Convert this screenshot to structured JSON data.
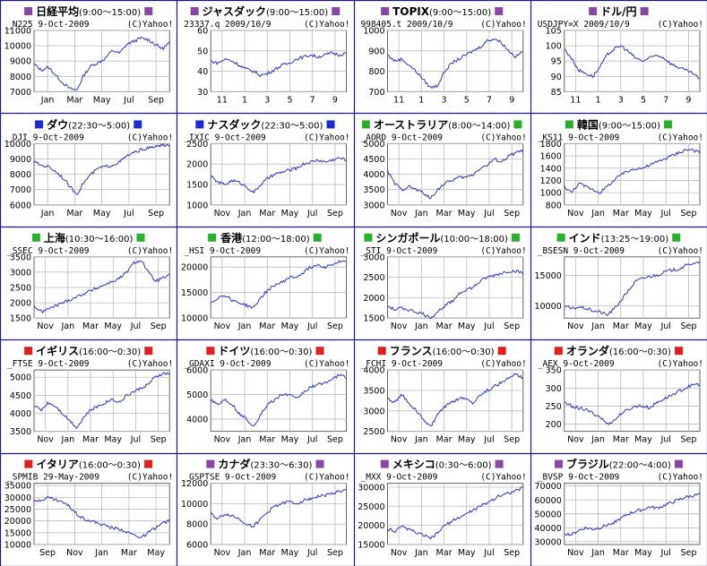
{
  "colors": {
    "border": "#1a1a8c",
    "line": "#2a36c8",
    "purple": "#8c44a8",
    "blue": "#1a2ad6",
    "green": "#28b028",
    "red": "#e02020"
  },
  "chart_data": [
    {
      "type": "line",
      "title": "日経平均",
      "hours": "(9:00〜15:00)",
      "square": "purple",
      "code": "_N225",
      "date": "9-Oct-2009",
      "credit": "(C)Yahoo!",
      "yticks": [
        "11000",
        "10000",
        "9000",
        "8000",
        "7000"
      ],
      "ylim": [
        7000,
        11000
      ],
      "xticks": [
        "Jan",
        "Mar",
        "May",
        "Jul",
        "Sep"
      ],
      "values": [
        8800,
        8400,
        8600,
        8100,
        7600,
        7200,
        7100,
        8100,
        8700,
        8900,
        9200,
        9700,
        9500,
        10100,
        10300,
        10500,
        10400,
        10100,
        9800,
        10200
      ]
    },
    {
      "type": "line",
      "title": "ジャスダック",
      "hours": "(9:00〜15:00)",
      "square": "purple",
      "code": "23337.q",
      "date": "2009/10/9",
      "credit": "(C)Yahoo!",
      "yticks": [
        "60",
        "50",
        "40",
        "30"
      ],
      "ylim": [
        30,
        60
      ],
      "xticks": [
        "11",
        "1",
        "3",
        "5",
        "7",
        "9"
      ],
      "values": [
        45,
        44,
        46,
        45,
        43,
        41,
        40,
        38,
        39,
        41,
        43,
        44,
        46,
        47,
        48,
        47,
        48,
        49,
        48,
        49
      ]
    },
    {
      "type": "line",
      "title": "TOPIX",
      "hours": "(9:00〜15:00)",
      "square": "purple",
      "code": "998405.t",
      "date": "2009/10/9",
      "credit": "(C)Yahoo!",
      "yticks": [
        "1000",
        "900",
        "800",
        "700"
      ],
      "ylim": [
        700,
        1000
      ],
      "xticks": [
        "11",
        "1",
        "3",
        "5",
        "7",
        "9"
      ],
      "values": [
        880,
        850,
        860,
        830,
        800,
        760,
        720,
        730,
        800,
        840,
        860,
        880,
        900,
        920,
        950,
        960,
        940,
        900,
        870,
        900
      ]
    },
    {
      "type": "line",
      "title": "ドル/円",
      "hours": "",
      "square": "purple",
      "code": "USDJPY=X",
      "date": "2009/10/9",
      "credit": "(C)Yahoo!",
      "yticks": [
        "105",
        "100",
        "95",
        "90",
        "85"
      ],
      "ylim": [
        85,
        105
      ],
      "xticks": [
        "11",
        "1",
        "3",
        "5",
        "7",
        "9"
      ],
      "values": [
        99,
        96,
        92,
        91,
        90,
        93,
        97,
        99,
        100,
        98,
        96,
        95,
        96,
        97,
        96,
        94,
        93,
        92,
        91,
        89
      ]
    },
    {
      "type": "line",
      "title": "ダウ",
      "hours": "(22:30〜5:00)",
      "square": "blue",
      "code": "_DJI",
      "date": "9-Oct-2009",
      "credit": "(C)Yahoo!",
      "yticks": [
        "10000",
        "9000",
        "8000",
        "7000",
        "6000"
      ],
      "ylim": [
        6000,
        10000
      ],
      "xticks": [
        "Jan",
        "Mar",
        "May",
        "Jul",
        "Sep"
      ],
      "values": [
        8800,
        8600,
        8500,
        8200,
        7800,
        7200,
        6700,
        7500,
        8000,
        8400,
        8500,
        8600,
        8800,
        9200,
        9400,
        9600,
        9700,
        9800,
        9900,
        9900
      ]
    },
    {
      "type": "line",
      "title": "ナスダック",
      "hours": "(22:30〜5:00)",
      "square": "blue",
      "code": "_IXIC",
      "date": "9-Oct-2009",
      "credit": "(C)Yahoo!",
      "yticks": [
        "2500",
        "2000",
        "1500",
        "1000"
      ],
      "ylim": [
        1000,
        2500
      ],
      "xticks": [
        "Nov",
        "Jan",
        "Mar",
        "May",
        "Jul",
        "Sep"
      ],
      "values": [
        1700,
        1550,
        1500,
        1600,
        1550,
        1450,
        1300,
        1500,
        1650,
        1750,
        1800,
        1850,
        1900,
        2000,
        2050,
        2100,
        2050,
        2100,
        2150,
        2100
      ]
    },
    {
      "type": "line",
      "title": "オーストラリア",
      "hours": "(8:00〜14:00)",
      "square": "green",
      "code": "_AORD",
      "date": "9-Oct-2009",
      "credit": "(C)Yahoo!",
      "yticks": [
        "5000",
        "4500",
        "4000",
        "3500",
        "3000"
      ],
      "ylim": [
        3000,
        5000
      ],
      "xticks": [
        "Nov",
        "Jan",
        "Mar",
        "May",
        "Jul",
        "Sep"
      ],
      "values": [
        4100,
        3700,
        3500,
        3600,
        3500,
        3400,
        3200,
        3500,
        3700,
        3800,
        3900,
        3900,
        4000,
        4200,
        4300,
        4500,
        4400,
        4600,
        4700,
        4800
      ]
    },
    {
      "type": "line",
      "title": "韓国",
      "hours": "(9:00〜15:00)",
      "square": "green",
      "code": "_KS11",
      "date": "9-Oct-2009",
      "credit": "(C)Yahoo!",
      "yticks": [
        "1800",
        "1600",
        "1400",
        "1200",
        "1000",
        "800"
      ],
      "ylim": [
        800,
        1800
      ],
      "xticks": [
        "Nov",
        "Jan",
        "Mar",
        "May",
        "Jul",
        "Sep"
      ],
      "values": [
        1100,
        1000,
        1150,
        1100,
        1050,
        1000,
        1100,
        1200,
        1300,
        1350,
        1400,
        1400,
        1450,
        1500,
        1550,
        1600,
        1650,
        1700,
        1700,
        1650
      ]
    },
    {
      "type": "line",
      "title": "上海",
      "hours": "(10:30〜16:00)",
      "square": "green",
      "code": "_SSEC",
      "date": "9-Oct-2009",
      "credit": "(C)Yahoo!",
      "yticks": [
        "3500",
        "3000",
        "2500",
        "2000",
        "1500"
      ],
      "ylim": [
        1500,
        3500
      ],
      "xticks": [
        "Nov",
        "Jan",
        "Mar",
        "May",
        "Jul",
        "Sep"
      ],
      "values": [
        1900,
        1700,
        1800,
        1900,
        2000,
        2100,
        2200,
        2300,
        2400,
        2500,
        2600,
        2700,
        2800,
        3000,
        3300,
        3400,
        3000,
        2700,
        2800,
        2900
      ]
    },
    {
      "type": "line",
      "title": "香港",
      "hours": "(12:00〜18:00)",
      "square": "green",
      "code": "_HSI",
      "date": "9-Oct-2009",
      "credit": "(C)Yahoo!",
      "yticks": [
        "20000",
        "15000",
        "10000"
      ],
      "ylim": [
        10000,
        22000
      ],
      "xticks": [
        "Nov",
        "Jan",
        "Mar",
        "May",
        "Jul",
        "Sep"
      ],
      "values": [
        13000,
        14000,
        14500,
        13500,
        13000,
        12500,
        12000,
        14000,
        15500,
        16500,
        17000,
        18000,
        18000,
        19000,
        20000,
        20500,
        20000,
        20500,
        21000,
        21000
      ]
    },
    {
      "type": "line",
      "title": "シンガポール",
      "hours": "(10:00〜18:00)",
      "square": "green",
      "code": "_STI",
      "date": "9-Oct-2009",
      "credit": "(C)Yahoo!",
      "yticks": [
        "3000",
        "2500",
        "2000",
        "1500"
      ],
      "ylim": [
        1500,
        3000
      ],
      "xticks": [
        "Nov",
        "Jan",
        "Mar",
        "May",
        "Jul",
        "Sep"
      ],
      "values": [
        1800,
        1700,
        1750,
        1700,
        1650,
        1600,
        1500,
        1650,
        1800,
        1900,
        2100,
        2200,
        2250,
        2400,
        2500,
        2550,
        2600,
        2650,
        2650,
        2600
      ]
    },
    {
      "type": "line",
      "title": "インド",
      "hours": "(13:25〜19:00)",
      "square": "green",
      "code": "_BSESN",
      "date": "9-Oct-2009",
      "credit": "(C)Yahoo!",
      "yticks": [
        "15000",
        "10000"
      ],
      "ylim": [
        8000,
        18000
      ],
      "xticks": [
        "Nov",
        "Jan",
        "Mar",
        "May",
        "Jul",
        "Sep"
      ],
      "values": [
        10000,
        9500,
        9800,
        9600,
        9200,
        9000,
        8500,
        9500,
        11000,
        12500,
        14000,
        14500,
        14800,
        15000,
        15500,
        15800,
        16000,
        16500,
        17000,
        17000
      ]
    },
    {
      "type": "line",
      "title": "イギリス",
      "hours": "(16:00〜0:30)",
      "square": "red",
      "code": "_FTSE",
      "date": "9-Oct-2009",
      "credit": "(C)Yahoo!",
      "yticks": [
        "5000",
        "4500",
        "4000",
        "3500"
      ],
      "ylim": [
        3500,
        5200
      ],
      "xticks": [
        "Nov",
        "Jan",
        "Mar",
        "May",
        "Jul",
        "Sep"
      ],
      "values": [
        4200,
        4100,
        4300,
        4200,
        4000,
        3800,
        3600,
        3900,
        4100,
        4200,
        4300,
        4400,
        4300,
        4500,
        4600,
        4700,
        4800,
        5000,
        5100,
        5100
      ]
    },
    {
      "type": "line",
      "title": "ドイツ",
      "hours": "(16:00〜0:30)",
      "square": "red",
      "code": "_GDAXI",
      "date": "9-Oct-2009",
      "credit": "(C)Yahoo!",
      "yticks": [
        "6000",
        "5000",
        "4000"
      ],
      "ylim": [
        3500,
        6000
      ],
      "xticks": [
        "Nov",
        "Jan",
        "Mar",
        "May",
        "Jul",
        "Sep"
      ],
      "values": [
        4800,
        4600,
        4800,
        4600,
        4200,
        4000,
        3700,
        4200,
        4600,
        4800,
        5000,
        5000,
        4800,
        5100,
        5300,
        5400,
        5500,
        5600,
        5800,
        5700
      ]
    },
    {
      "type": "line",
      "title": "フランス",
      "hours": "(16:00〜0:30)",
      "square": "red",
      "code": "_FCHI",
      "date": "9-Oct-2009",
      "credit": "(C)Yahoo!",
      "yticks": [
        "4000",
        "3500",
        "3000",
        "2500"
      ],
      "ylim": [
        2500,
        4000
      ],
      "xticks": [
        "Nov",
        "Jan",
        "Mar",
        "May",
        "Jul",
        "Sep"
      ],
      "values": [
        3300,
        3200,
        3400,
        3200,
        3000,
        2800,
        2600,
        2900,
        3100,
        3200,
        3300,
        3300,
        3200,
        3400,
        3500,
        3600,
        3700,
        3800,
        3900,
        3800
      ]
    },
    {
      "type": "line",
      "title": "オランダ",
      "hours": "(16:00〜0:30)",
      "square": "red",
      "code": "_AEX",
      "date": "9-Oct-2009",
      "credit": "(C)Yahoo!",
      "yticks": [
        "350",
        "300",
        "250",
        "200"
      ],
      "ylim": [
        180,
        350
      ],
      "xticks": [
        "Nov",
        "Jan",
        "Mar",
        "May",
        "Jul",
        "Sep"
      ],
      "values": [
        260,
        250,
        245,
        240,
        230,
        220,
        200,
        210,
        230,
        240,
        250,
        250,
        245,
        260,
        270,
        280,
        290,
        300,
        310,
        310
      ]
    },
    {
      "type": "line",
      "title": "イタリア",
      "hours": "(16:00〜0:30)",
      "square": "red",
      "code": "_SPMIB",
      "date": "29-May-2009",
      "credit": "(C)Yahoo!",
      "yticks": [
        "35000",
        "30000",
        "25000",
        "20000",
        "15000",
        "10000"
      ],
      "ylim": [
        10000,
        36000
      ],
      "xticks": [
        "Sep",
        "Nov",
        "Jan",
        "Mar",
        "May"
      ],
      "values": [
        28000,
        29000,
        30000,
        29000,
        28000,
        26000,
        23000,
        21000,
        20000,
        19000,
        18000,
        17000,
        16500,
        15500,
        14000,
        13000,
        15000,
        17000,
        19000,
        20000
      ]
    },
    {
      "type": "line",
      "title": "カナダ",
      "hours": "(23:30〜6:30)",
      "square": "purple",
      "code": "_GSPTSE",
      "date": "9-Oct-2009",
      "credit": "(C)Yahoo!",
      "yticks": [
        "12000",
        "10000",
        "8000",
        "6000"
      ],
      "ylim": [
        6000,
        12000
      ],
      "xticks": [
        "Nov",
        "Jan",
        "Mar",
        "May",
        "Jul",
        "Sep"
      ],
      "values": [
        9000,
        8500,
        9000,
        8800,
        8500,
        8000,
        7800,
        8500,
        9200,
        9800,
        10000,
        10200,
        10000,
        10300,
        10500,
        10700,
        10800,
        11000,
        11200,
        11300
      ]
    },
    {
      "type": "line",
      "title": "メキシコ",
      "hours": "(0:30〜6:00)",
      "square": "purple",
      "code": "_MXX",
      "date": "9-Oct-2009",
      "credit": "(C)Yahoo!",
      "yticks": [
        "30000",
        "25000",
        "20000",
        "15000"
      ],
      "ylim": [
        15000,
        31000
      ],
      "xticks": [
        "Nov",
        "Jan",
        "Mar",
        "May",
        "Jul",
        "Sep"
      ],
      "values": [
        19000,
        18500,
        19500,
        19000,
        18000,
        17500,
        16500,
        18000,
        20000,
        21000,
        22000,
        23000,
        24000,
        25000,
        26000,
        27000,
        28000,
        28500,
        29000,
        30000
      ]
    },
    {
      "type": "line",
      "title": "ブラジル",
      "hours": "(22:00〜4:00)",
      "square": "purple",
      "code": "_BVSP",
      "date": "9-Oct-2009",
      "credit": "(C)Yahoo!",
      "yticks": [
        "70000",
        "60000",
        "50000",
        "40000",
        "30000"
      ],
      "ylim": [
        28000,
        72000
      ],
      "xticks": [
        "Nov",
        "Jan",
        "Mar",
        "May",
        "Jul",
        "Sep"
      ],
      "values": [
        36000,
        35000,
        38000,
        40000,
        39000,
        40000,
        42000,
        44000,
        47000,
        50000,
        52000,
        53000,
        55000,
        54000,
        56000,
        58000,
        60000,
        62000,
        63000,
        64000
      ]
    }
  ]
}
